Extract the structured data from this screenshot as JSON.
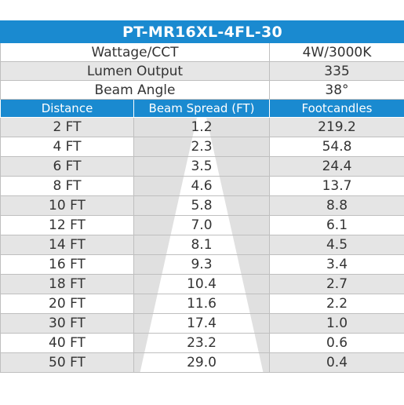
{
  "title": "PT-MR16XL-4FL-30",
  "specs": [
    {
      "label": "Wattage/CCT",
      "value": "4W/3000K"
    },
    {
      "label": "Lumen Output",
      "value": "335"
    },
    {
      "label": "Beam Angle",
      "value": "38°"
    }
  ],
  "columns": [
    "Distance",
    "Beam Spread (FT)",
    "Footcandles"
  ],
  "rows": [
    {
      "distance": "2 FT",
      "spread": "1.2",
      "fc": "219.2"
    },
    {
      "distance": "4 FT",
      "spread": "2.3",
      "fc": "54.8"
    },
    {
      "distance": "6 FT",
      "spread": "3.5",
      "fc": "24.4"
    },
    {
      "distance": "8 FT",
      "spread": "4.6",
      "fc": "13.7"
    },
    {
      "distance": "10 FT",
      "spread": "5.8",
      "fc": "8.8"
    },
    {
      "distance": "12 FT",
      "spread": "7.0",
      "fc": "6.1"
    },
    {
      "distance": "14 FT",
      "spread": "8.1",
      "fc": "4.5"
    },
    {
      "distance": "16 FT",
      "spread": "9.3",
      "fc": "3.4"
    },
    {
      "distance": "18 FT",
      "spread": "10.4",
      "fc": "2.7"
    },
    {
      "distance": "20 FT",
      "spread": "11.6",
      "fc": "2.2"
    },
    {
      "distance": "30 FT",
      "spread": "17.4",
      "fc": "1.0"
    },
    {
      "distance": "40 FT",
      "spread": "23.2",
      "fc": "0.6"
    },
    {
      "distance": "50 FT",
      "spread": "29.0",
      "fc": "0.4"
    }
  ],
  "colors": {
    "header_blue": "#1a8ad0",
    "row_shade": "#e0e0e0",
    "beam": "#ffffff"
  }
}
